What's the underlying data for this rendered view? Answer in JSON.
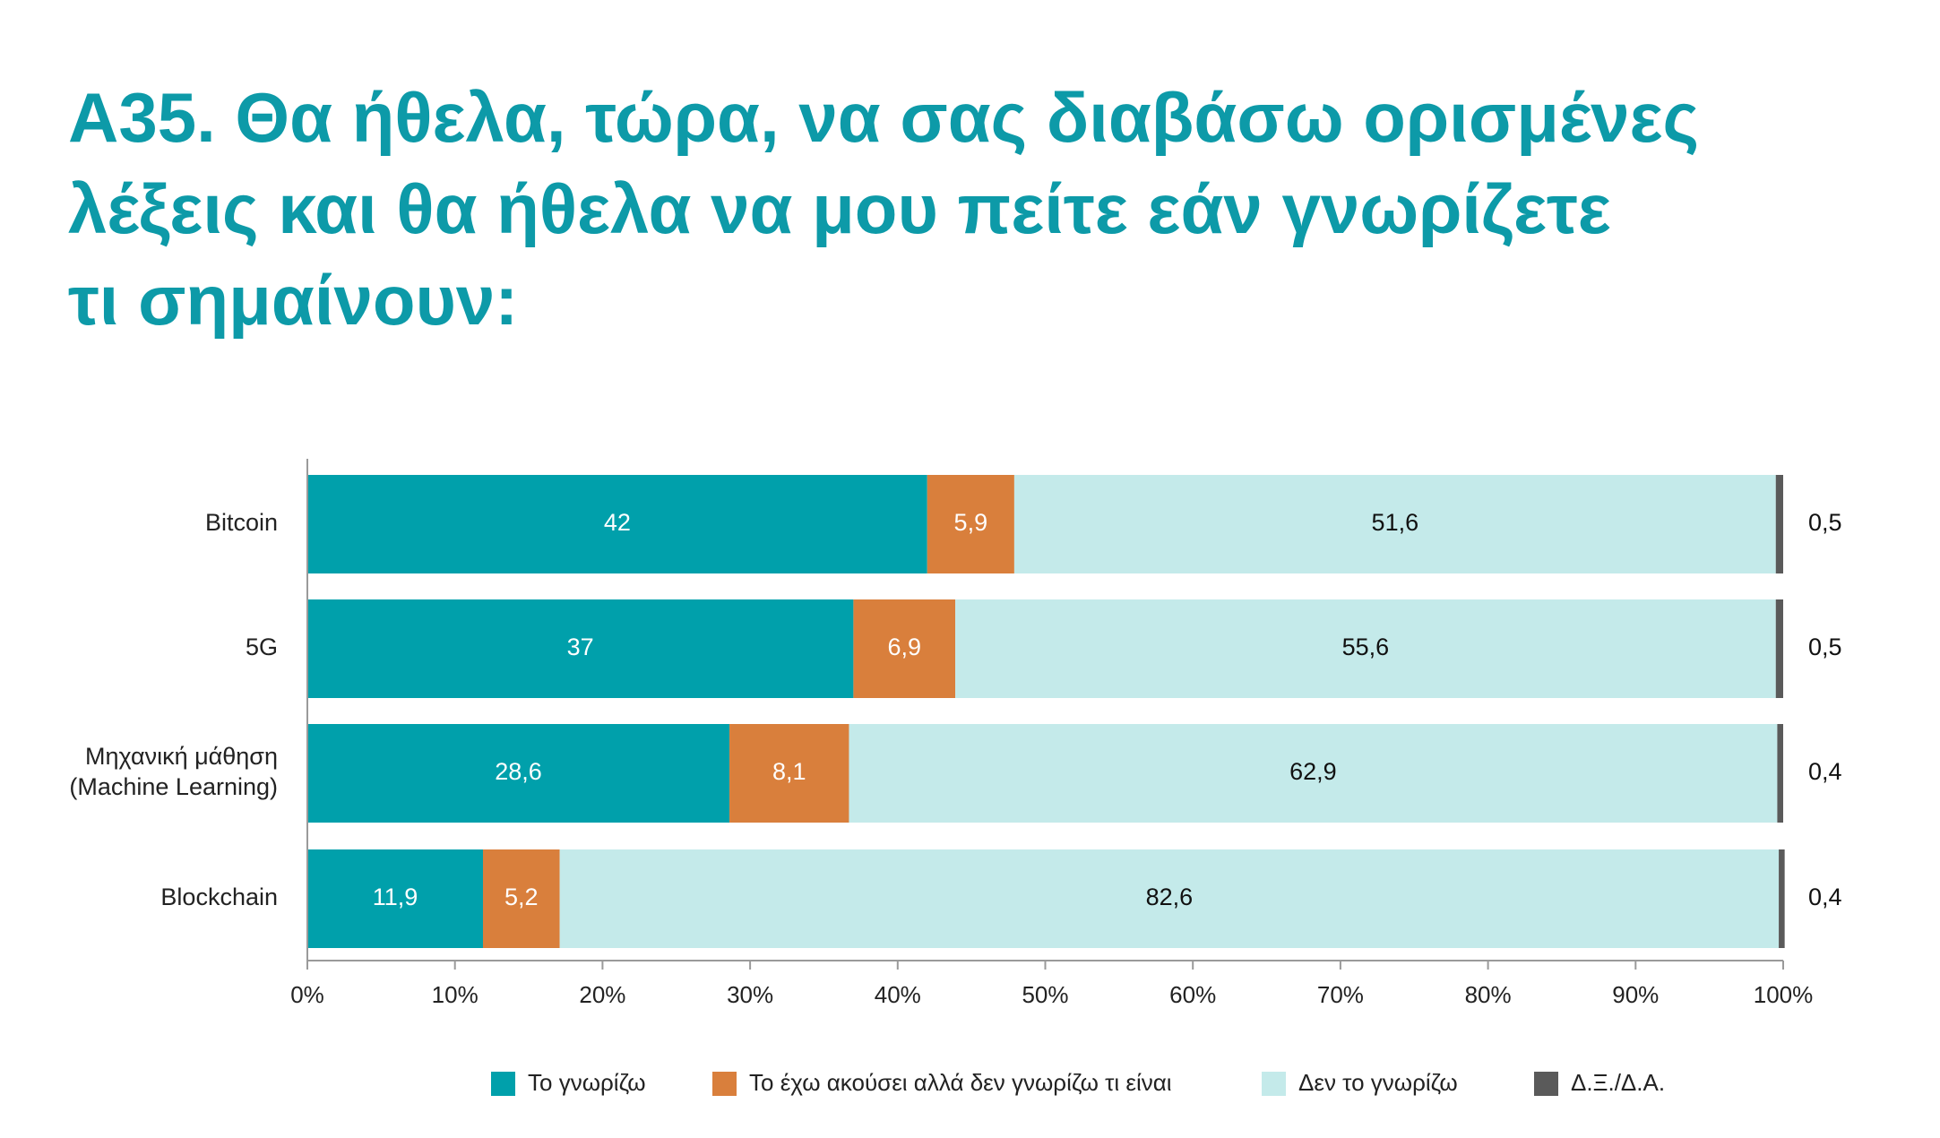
{
  "title_lines": [
    "Α35. Θα ήθελα, τώρα, να σας διαβάσω ορισμένες",
    "λέξεις και θα ήθελα να μου πείτε εάν γνωρίζετε",
    "τι σημαίνουν:"
  ],
  "colors": {
    "title": "#0d9aa8",
    "know": "#00a0ab",
    "heard": "#d97f3c",
    "dont_know": "#c4eaea",
    "dk_na": "#5a5a5a"
  },
  "chart_data": {
    "type": "bar",
    "orientation": "horizontal",
    "stacked": true,
    "categories": [
      [
        "Bitcoin"
      ],
      [
        "5G"
      ],
      [
        "Μηχανική μάθηση",
        "(Machine Learning)"
      ],
      [
        "Blockchain"
      ]
    ],
    "series": [
      {
        "name": "Το γνωρίζω",
        "values": [
          42,
          37,
          28.6,
          11.9
        ],
        "labels": [
          "42",
          "37",
          "28,6",
          "11,9"
        ],
        "label_color": "#ffffff"
      },
      {
        "name": "Το έχω ακούσει αλλά δεν γνωρίζω τι είναι",
        "values": [
          5.9,
          6.9,
          8.1,
          5.2
        ],
        "labels": [
          "5,9",
          "6,9",
          "8,1",
          "5,2"
        ],
        "label_color": "#ffffff"
      },
      {
        "name": "Δεν το γνωρίζω",
        "values": [
          51.6,
          55.6,
          62.9,
          82.6
        ],
        "labels": [
          "51,6",
          "55,6",
          "62,9",
          "82,6"
        ],
        "label_color": "#111111"
      },
      {
        "name": "Δ.Ξ./Δ.Α.",
        "values": [
          0.5,
          0.5,
          0.4,
          0.4
        ],
        "labels": [
          "0,5",
          "0,5",
          "0,4",
          "0,4"
        ],
        "label_color": "#111111",
        "label_outside": true
      }
    ],
    "x_ticks": [
      "0%",
      "10%",
      "20%",
      "30%",
      "40%",
      "50%",
      "60%",
      "70%",
      "80%",
      "90%",
      "100%"
    ],
    "xlim": [
      0,
      100
    ],
    "grid": false,
    "legend_position": "bottom"
  }
}
